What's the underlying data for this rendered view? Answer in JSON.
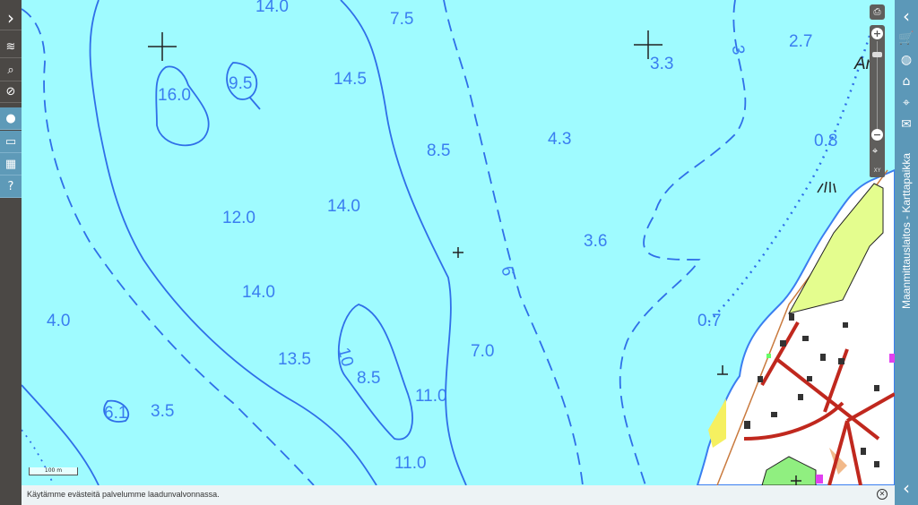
{
  "app": {
    "title": "Maanmittauslaitos - Karttapaikka"
  },
  "left_toolbar": [
    {
      "icon": "chevron-right-icon",
      "glyph": "›"
    },
    {
      "icon": "layers-icon",
      "glyph": "≋"
    },
    {
      "icon": "search-icon",
      "glyph": "⌕"
    },
    {
      "icon": "hide-icon",
      "glyph": "⊘"
    },
    {
      "icon": "location-pin-icon",
      "glyph": "●"
    },
    {
      "icon": "measure-line-icon",
      "glyph": "▭"
    },
    {
      "icon": "measure-area-icon",
      "glyph": "▦"
    },
    {
      "icon": "help-icon",
      "glyph": "?"
    }
  ],
  "right_toolbar": [
    {
      "icon": "chevron-left-icon",
      "glyph": "‹"
    },
    {
      "icon": "cart-icon",
      "glyph": "🛒"
    },
    {
      "icon": "globe-icon",
      "glyph": "◍"
    },
    {
      "icon": "home-icon",
      "glyph": "⌂"
    },
    {
      "icon": "map-pin-icon",
      "glyph": "⌖"
    },
    {
      "icon": "mail-icon",
      "glyph": "✉"
    }
  ],
  "map_controls": {
    "print_icon": "printer-icon",
    "zoom_in": "+",
    "zoom_out": "−",
    "locate_icon": "crosshair-icon",
    "xy_label": "XY"
  },
  "scale_bar": "100 m",
  "map_labels": [
    "14.0",
    "7.5",
    "2.7",
    "3.3",
    "Aro",
    "16.0",
    "9.5",
    "14.5",
    "4.3",
    "0.8",
    "8.5",
    "12.0",
    "14.0",
    "3.6",
    "14.0",
    "0.7",
    "4.0",
    "13.5",
    "10",
    "8.5",
    "7.0",
    "11.0",
    "6.1",
    "3.5",
    "11.0",
    "3",
    "6"
  ],
  "cookie_notice": {
    "text": "Käytämme evästeitä palvelumme laadunvalvonnassa.",
    "close_icon": "close-circle-icon"
  },
  "colors": {
    "water": "#9ffbff",
    "depth_text": "#3a7ef0",
    "contour": "#2f6fe8",
    "sidebar_dark": "#4b4845",
    "sidebar_blue": "#5c98b8",
    "road": "#c0281e",
    "field": "#e4fd8e"
  }
}
